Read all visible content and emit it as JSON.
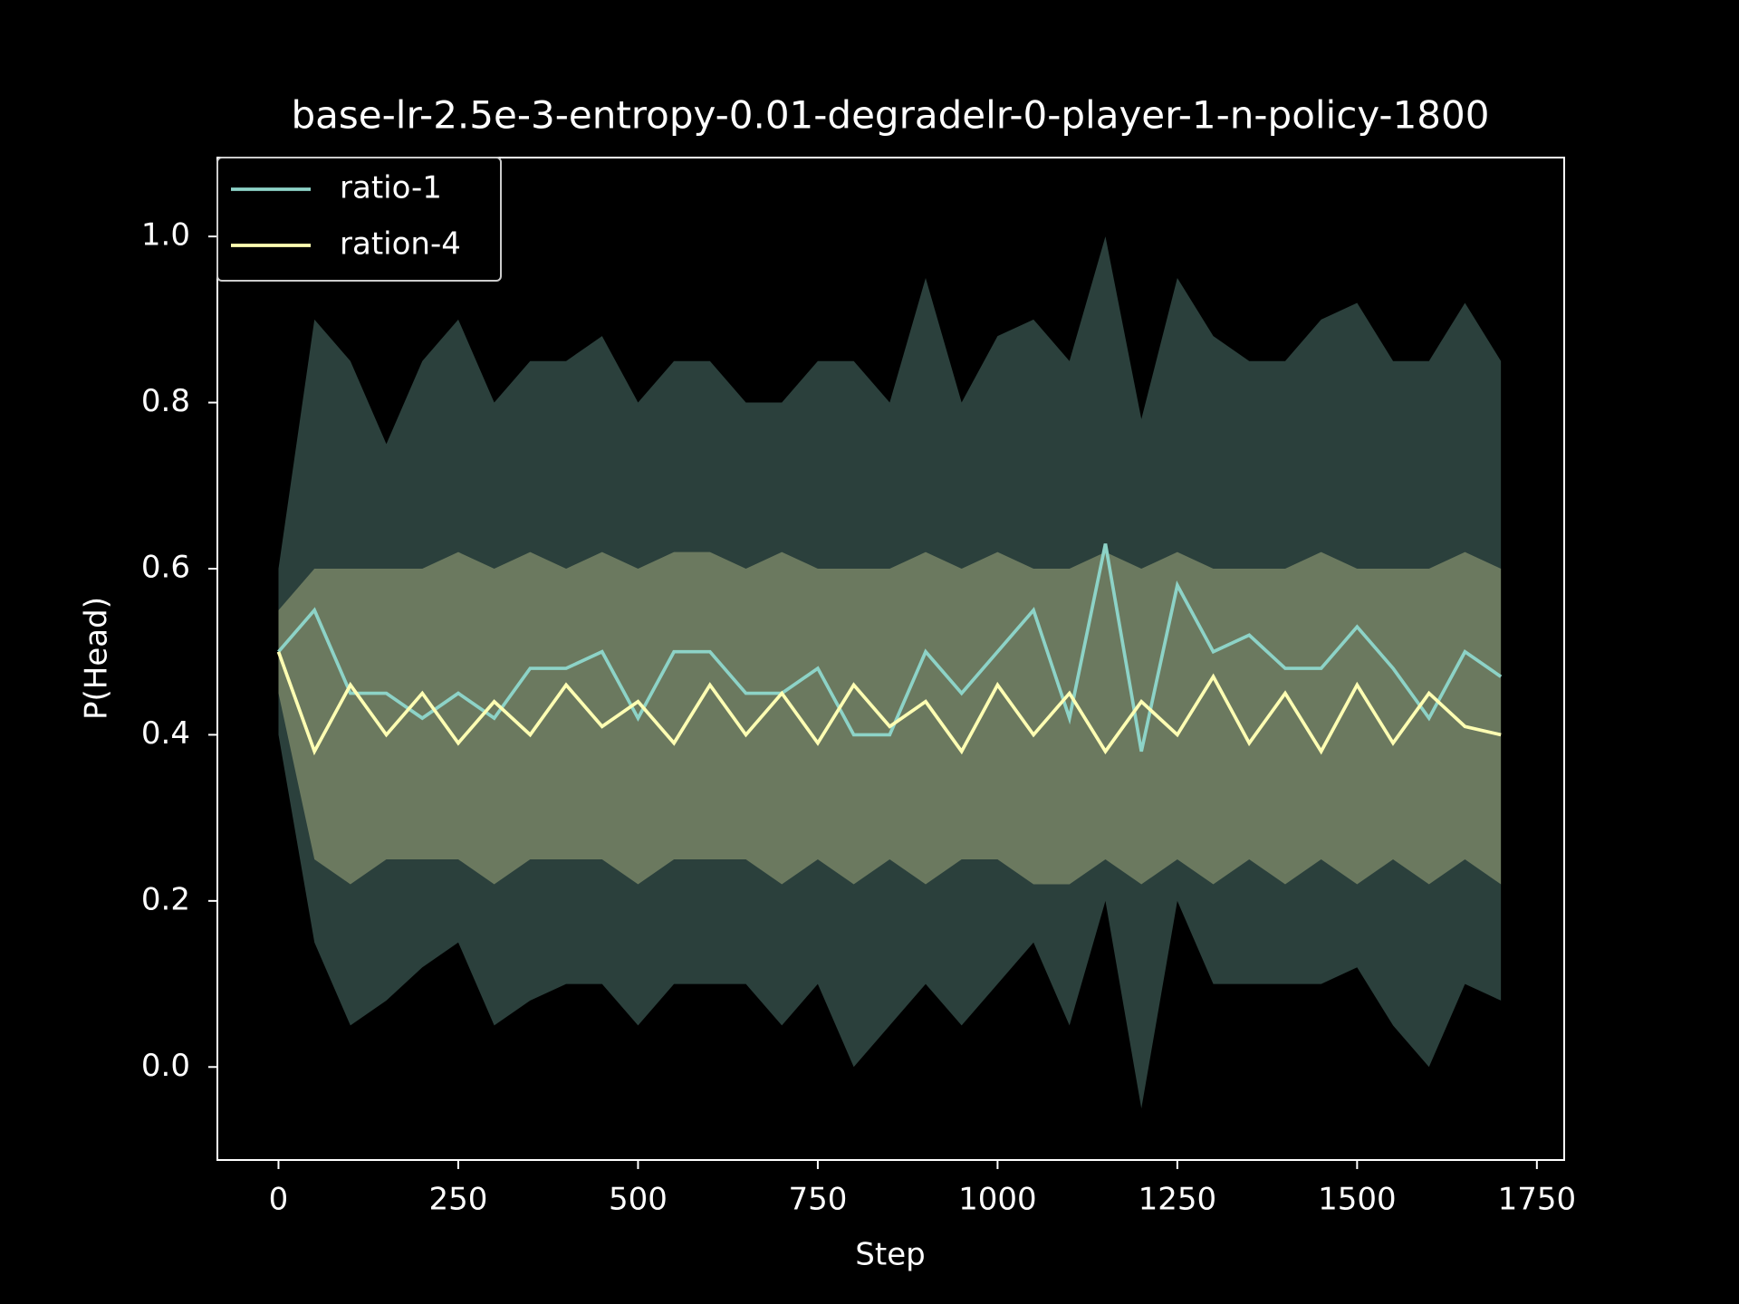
{
  "chart_data": {
    "type": "line",
    "title": "base-lr-2.5e-3-entropy-0.01-degradelr-0-player-1-n-policy-1800",
    "x_label": "Step",
    "y_label": "P(Head)",
    "x": [
      0,
      50,
      100,
      150,
      200,
      250,
      300,
      350,
      400,
      450,
      500,
      550,
      600,
      650,
      700,
      750,
      800,
      850,
      900,
      950,
      1000,
      1050,
      1100,
      1150,
      1200,
      1250,
      1300,
      1350,
      1400,
      1450,
      1500,
      1550,
      1600,
      1650,
      1700
    ],
    "series": [
      {
        "name": "ratio-1",
        "color": "#8dd3c7",
        "values": [
          0.5,
          0.55,
          0.45,
          0.45,
          0.42,
          0.45,
          0.42,
          0.48,
          0.48,
          0.5,
          0.42,
          0.5,
          0.5,
          0.45,
          0.45,
          0.48,
          0.4,
          0.4,
          0.5,
          0.45,
          0.5,
          0.55,
          0.42,
          0.63,
          0.38,
          0.58,
          0.5,
          0.52,
          0.48,
          0.48,
          0.53,
          0.48,
          0.42,
          0.5,
          0.47
        ],
        "upper": [
          0.6,
          0.9,
          0.85,
          0.75,
          0.85,
          0.9,
          0.8,
          0.85,
          0.85,
          0.88,
          0.8,
          0.85,
          0.85,
          0.8,
          0.8,
          0.85,
          0.85,
          0.8,
          0.95,
          0.8,
          0.88,
          0.9,
          0.85,
          1.0,
          0.78,
          0.95,
          0.88,
          0.85,
          0.85,
          0.9,
          0.92,
          0.85,
          0.85,
          0.92,
          0.85
        ],
        "lower": [
          0.4,
          0.15,
          0.05,
          0.08,
          0.12,
          0.15,
          0.05,
          0.08,
          0.1,
          0.1,
          0.05,
          0.1,
          0.1,
          0.1,
          0.05,
          0.1,
          0.0,
          0.05,
          0.1,
          0.05,
          0.1,
          0.15,
          0.05,
          0.2,
          -0.05,
          0.2,
          0.1,
          0.1,
          0.1,
          0.1,
          0.12,
          0.05,
          0.0,
          0.1,
          0.08
        ]
      },
      {
        "name": "ration-4",
        "color": "#ffffb3",
        "values": [
          0.5,
          0.38,
          0.46,
          0.4,
          0.45,
          0.39,
          0.44,
          0.4,
          0.46,
          0.41,
          0.44,
          0.39,
          0.46,
          0.4,
          0.45,
          0.39,
          0.46,
          0.41,
          0.44,
          0.38,
          0.46,
          0.4,
          0.45,
          0.38,
          0.44,
          0.4,
          0.47,
          0.39,
          0.45,
          0.38,
          0.46,
          0.39,
          0.45,
          0.41,
          0.4
        ],
        "upper": [
          0.55,
          0.6,
          0.6,
          0.6,
          0.6,
          0.62,
          0.6,
          0.62,
          0.6,
          0.62,
          0.6,
          0.62,
          0.62,
          0.6,
          0.62,
          0.6,
          0.6,
          0.6,
          0.62,
          0.6,
          0.62,
          0.6,
          0.6,
          0.62,
          0.6,
          0.62,
          0.6,
          0.6,
          0.6,
          0.62,
          0.6,
          0.6,
          0.6,
          0.62,
          0.6
        ],
        "lower": [
          0.45,
          0.25,
          0.22,
          0.25,
          0.25,
          0.25,
          0.22,
          0.25,
          0.25,
          0.25,
          0.22,
          0.25,
          0.25,
          0.25,
          0.22,
          0.25,
          0.22,
          0.25,
          0.22,
          0.25,
          0.25,
          0.22,
          0.22,
          0.25,
          0.22,
          0.25,
          0.22,
          0.25,
          0.22,
          0.25,
          0.22,
          0.25,
          0.22,
          0.25,
          0.22
        ]
      }
    ],
    "xlim": [
      -85,
      1788
    ],
    "ylim": [
      -0.112,
      1.095
    ],
    "xticks": [
      0,
      250,
      500,
      750,
      1000,
      1250,
      1500,
      1750
    ],
    "yticks": [
      {
        "value": 0,
        "label": "0.0"
      },
      0.2,
      0.4,
      0.6,
      0.8,
      {
        "value": 1,
        "label": "1.0"
      }
    ],
    "legend": "upper left",
    "band_opacity": 0.3
  }
}
